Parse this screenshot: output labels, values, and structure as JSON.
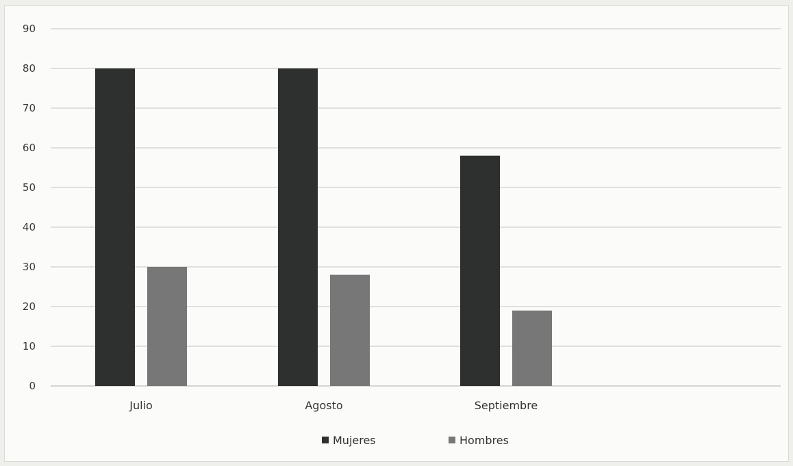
{
  "chart_data": {
    "type": "bar",
    "categories": [
      "Julio",
      "Agosto",
      "Septiembre"
    ],
    "series": [
      {
        "name": "Mujeres",
        "values": [
          80,
          80,
          58
        ],
        "color": "#2d302e"
      },
      {
        "name": "Hombres",
        "values": [
          30,
          28,
          19
        ],
        "color": "#777777"
      }
    ],
    "title": "",
    "xlabel": "",
    "ylabel": "",
    "ylim": [
      0,
      90
    ],
    "yticks": [
      0,
      10,
      20,
      30,
      40,
      50,
      60,
      70,
      80,
      90
    ],
    "grid": true,
    "legend_position": "bottom-center"
  },
  "colors": {
    "gridline": "#d6d6d2",
    "axis": "#c8c8c4",
    "background": "#fbfbf9"
  }
}
